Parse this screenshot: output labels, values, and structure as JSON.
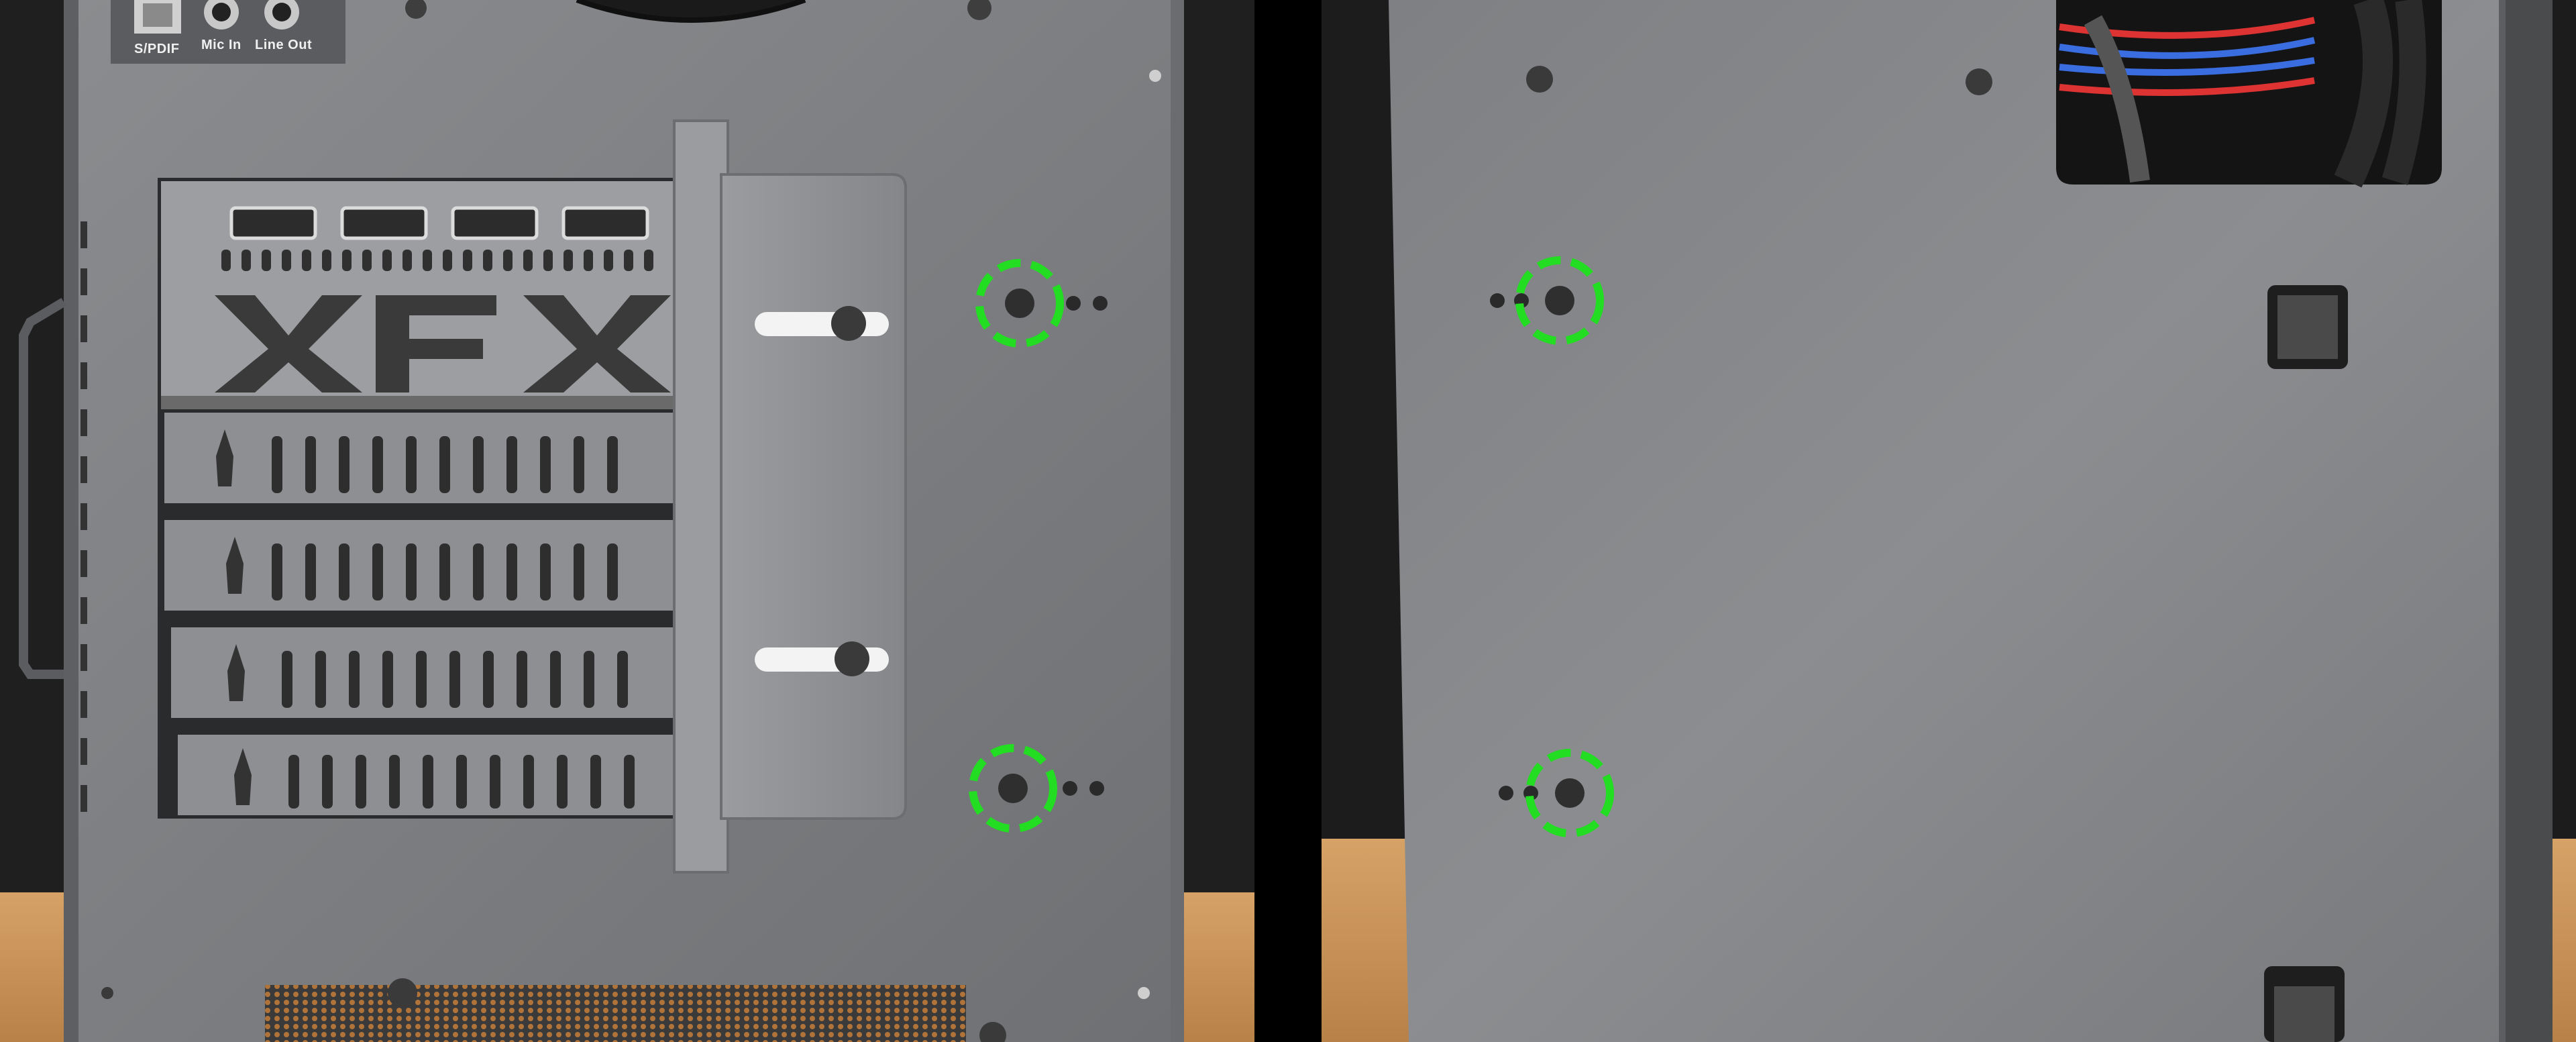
{
  "io_panel": {
    "labels": [
      "S/PDIF",
      "Mic In",
      "Line Out"
    ]
  },
  "gpu_bracket": {
    "brand": "XFX",
    "hdmi_ports": 4
  },
  "expansion_slot_covers": 4,
  "highlights": {
    "color": "#22dd22",
    "style": "dashed-circle",
    "left_panel_count": 2,
    "right_panel_count": 2
  },
  "colors": {
    "case_metal": "#7b7d80",
    "background_wall": "#1e1e1e",
    "desk_wood": "#c8955a",
    "divider": "#000000"
  }
}
